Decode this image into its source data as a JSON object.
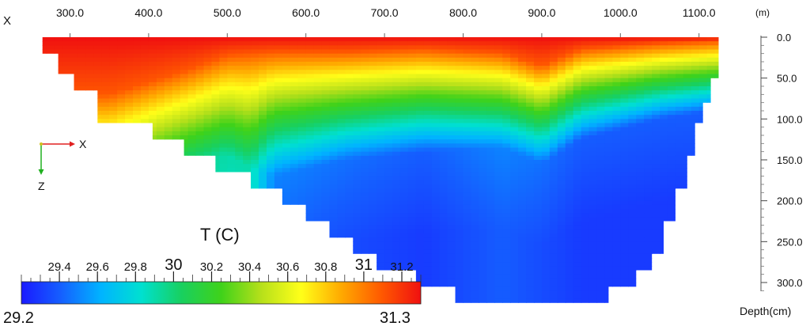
{
  "chart_data": {
    "type": "heatmap",
    "title": "T (C)",
    "x_axis": {
      "label": "X",
      "unit": "(m)",
      "ticks": [
        300.0,
        400.0,
        500.0,
        600.0,
        700.0,
        800.0,
        900.0,
        1000.0,
        1100.0
      ],
      "tick_labels": [
        "300.0",
        "400.0",
        "500.0",
        "600.0",
        "700.0",
        "800.0",
        "900.0",
        "1000.0",
        "1100.0"
      ],
      "position": "top"
    },
    "y_axis": {
      "label": "Depth(cm)",
      "ticks": [
        0.0,
        50.0,
        100.0,
        150.0,
        200.0,
        250.0,
        300.0
      ],
      "tick_labels": [
        "0.0",
        "50.0",
        "100.0",
        "150.0",
        "200.0",
        "250.0",
        "300.0"
      ],
      "position": "right",
      "inverted": true
    },
    "orientation_axes": {
      "x": "X",
      "z": "Z"
    },
    "colorbar": {
      "min": 29.2,
      "max": 31.3,
      "min_label": "29.2",
      "max_label": "31.3",
      "colormap": "rainbow (blue to red)",
      "colors": [
        "#1a1aff",
        "#1560ff",
        "#00b4ff",
        "#00e0d0",
        "#18d060",
        "#3fd21a",
        "#b6e01a",
        "#ffff19",
        "#ffaa00",
        "#ff5a00",
        "#f01010"
      ],
      "tick_values": [
        29.4,
        29.6,
        29.8,
        30,
        30.2,
        30.4,
        30.6,
        30.8,
        31,
        31.2
      ],
      "tick_labels": [
        "29.4",
        "29.6",
        "29.8",
        "30",
        "30.2",
        "30.4",
        "30.6",
        "30.8",
        "31",
        "31.2"
      ],
      "major_tick_labels": [
        "30",
        "31"
      ]
    },
    "section_bottom": [
      {
        "x": 265,
        "depth": 20
      },
      {
        "x": 285,
        "depth": 45
      },
      {
        "x": 305,
        "depth": 65
      },
      {
        "x": 335,
        "depth": 105
      },
      {
        "x": 380,
        "depth": 105
      },
      {
        "x": 405,
        "depth": 125
      },
      {
        "x": 445,
        "depth": 145
      },
      {
        "x": 485,
        "depth": 165
      },
      {
        "x": 530,
        "depth": 185
      },
      {
        "x": 570,
        "depth": 205
      },
      {
        "x": 600,
        "depth": 225
      },
      {
        "x": 630,
        "depth": 245
      },
      {
        "x": 660,
        "depth": 265
      },
      {
        "x": 690,
        "depth": 285
      },
      {
        "x": 740,
        "depth": 305
      },
      {
        "x": 790,
        "depth": 325
      },
      {
        "x": 950,
        "depth": 325
      },
      {
        "x": 985,
        "depth": 305
      },
      {
        "x": 1020,
        "depth": 285
      },
      {
        "x": 1040,
        "depth": 265
      },
      {
        "x": 1055,
        "depth": 225
      },
      {
        "x": 1070,
        "depth": 185
      },
      {
        "x": 1085,
        "depth": 145
      },
      {
        "x": 1095,
        "depth": 105
      },
      {
        "x": 1105,
        "depth": 80
      },
      {
        "x": 1115,
        "depth": 50
      },
      {
        "x": 1125,
        "depth": 20
      }
    ],
    "profiles": [
      {
        "x": 240,
        "mix": 70,
        "therm": 110,
        "bottom_temp": 30.5
      },
      {
        "x": 350,
        "mix": 70,
        "therm": 120,
        "bottom_temp": 30.5
      },
      {
        "x": 450,
        "mix": 40,
        "therm": 150,
        "bottom_temp": 29.9
      },
      {
        "x": 500,
        "mix": 22,
        "therm": 145,
        "bottom_temp": 29.8
      },
      {
        "x": 530,
        "mix": 20,
        "therm": 160,
        "bottom_temp": 29.8
      },
      {
        "x": 560,
        "mix": 18,
        "therm": 170,
        "bottom_temp": 29.4
      },
      {
        "x": 650,
        "mix": 18,
        "therm": 150,
        "bottom_temp": 29.35
      },
      {
        "x": 750,
        "mix": 15,
        "therm": 140,
        "bottom_temp": 29.3
      },
      {
        "x": 850,
        "mix": 20,
        "therm": 135,
        "bottom_temp": 29.4
      },
      {
        "x": 900,
        "mix": 35,
        "therm": 155,
        "bottom_temp": 29.35
      },
      {
        "x": 950,
        "mix": 15,
        "therm": 125,
        "bottom_temp": 29.3
      },
      {
        "x": 1050,
        "mix": 8,
        "therm": 100,
        "bottom_temp": 29.3
      },
      {
        "x": 1120,
        "mix": 5,
        "therm": 90,
        "bottom_temp": 29.3
      }
    ],
    "surface_temp": 31.3,
    "grid": false
  }
}
